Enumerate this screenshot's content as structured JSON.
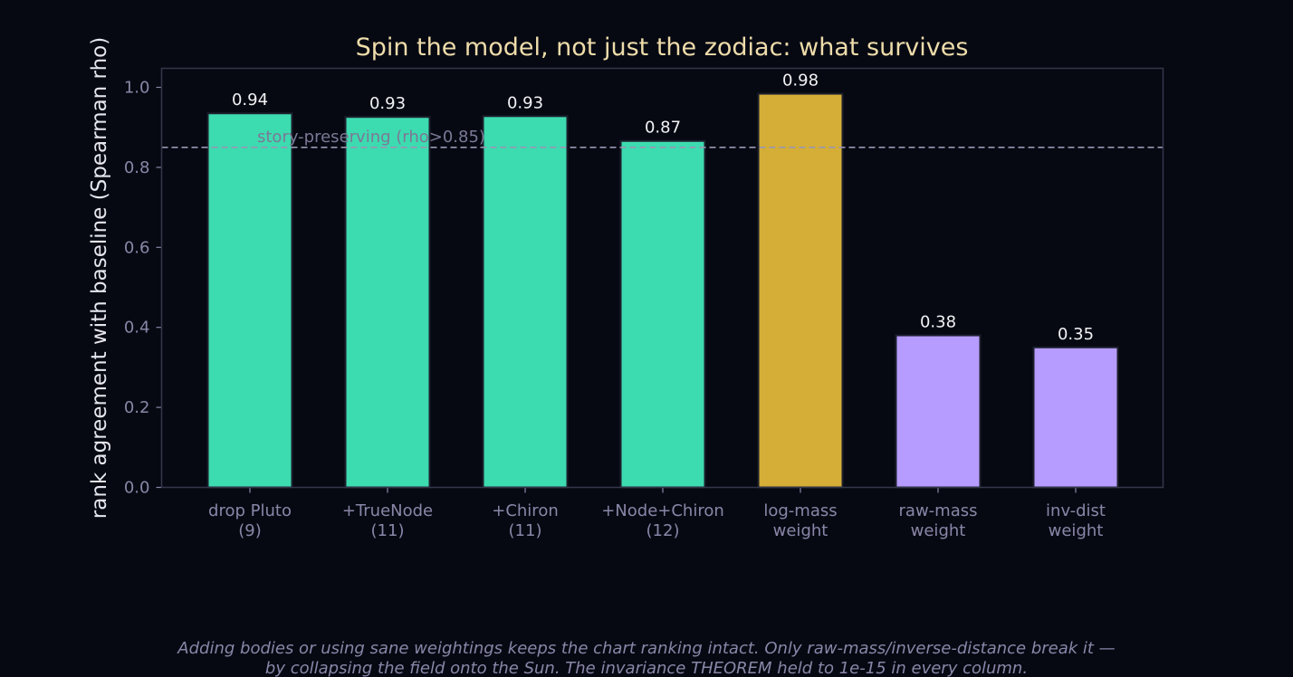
{
  "chart_data": {
    "type": "bar",
    "title": "Spin the model, not just the zodiac: what survives",
    "ylabel": "rank agreement with baseline (Spearman rho)",
    "xlabel": "",
    "ylim": [
      0,
      1.05
    ],
    "yticks": [
      "0.0",
      "0.2",
      "0.4",
      "0.6",
      "0.8",
      "1.0"
    ],
    "grid": false,
    "categories": [
      [
        "drop Pluto",
        "(9)"
      ],
      [
        "+TrueNode",
        "(11)"
      ],
      [
        "+Chiron",
        "(11)"
      ],
      [
        "+Node+Chiron",
        "(12)"
      ],
      [
        "log-mass",
        "weight"
      ],
      [
        "raw-mass",
        "weight"
      ],
      [
        "inv-dist",
        "weight"
      ]
    ],
    "values": [
      0.935,
      0.926,
      0.928,
      0.866,
      0.984,
      0.38,
      0.35
    ],
    "value_labels": [
      "0.94",
      "0.93",
      "0.93",
      "0.87",
      "0.98",
      "0.38",
      "0.35"
    ],
    "bar_colors": [
      "#3ddbb0",
      "#3ddbb0",
      "#3ddbb0",
      "#3ddbb0",
      "#d4ae36",
      "#b79cff",
      "#b79cff"
    ],
    "reference_line": {
      "value": 0.85,
      "label": "story-preserving (rho>0.85)"
    }
  },
  "caption": {
    "line1": "Adding bodies or using sane weightings keeps the chart ranking intact. Only raw-mass/inverse-distance break it —",
    "line2": "by collapsing the field onto the Sun. The invariance THEOREM held to 1e-15 in every column."
  },
  "colors": {
    "background": "#060912",
    "axes_frame": "#34374a",
    "reference_line": "#9a96b4",
    "bar_edge": "#1c1f2c"
  }
}
